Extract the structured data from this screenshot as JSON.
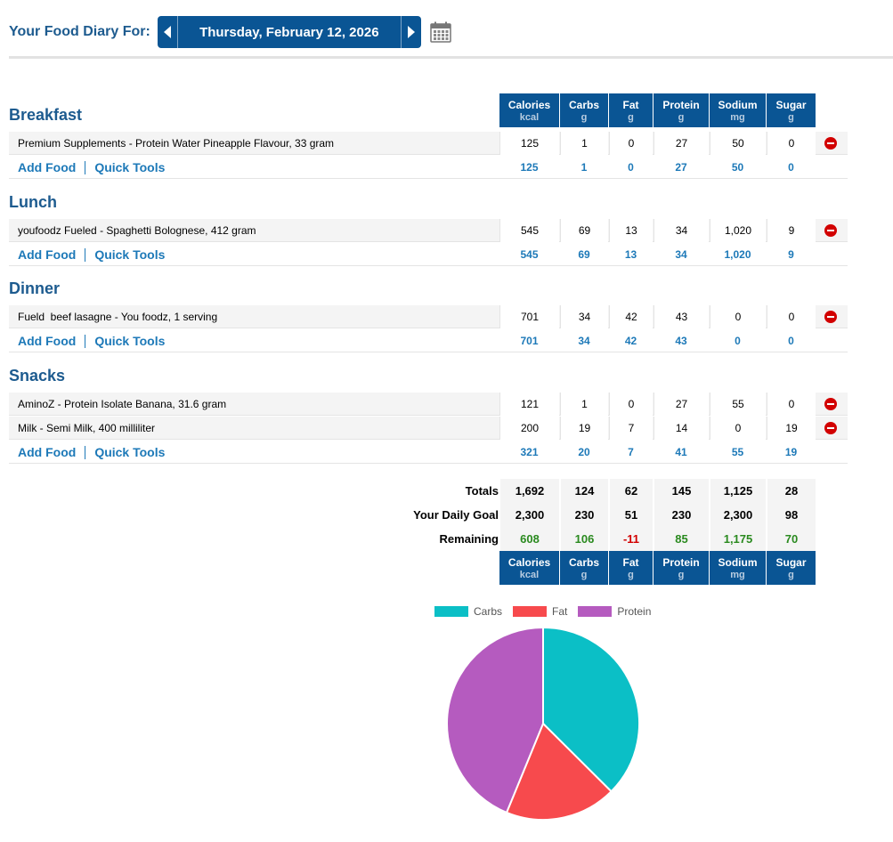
{
  "header": {
    "label": "Your Food Diary For:",
    "date": "Thursday, February 12, 2026"
  },
  "columns": [
    {
      "name": "Calories",
      "unit": "kcal"
    },
    {
      "name": "Carbs",
      "unit": "g"
    },
    {
      "name": "Fat",
      "unit": "g"
    },
    {
      "name": "Protein",
      "unit": "g"
    },
    {
      "name": "Sodium",
      "unit": "mg"
    },
    {
      "name": "Sugar",
      "unit": "g"
    }
  ],
  "links": {
    "add_food": "Add Food",
    "quick_tools": "Quick Tools"
  },
  "meals": {
    "breakfast": {
      "title": "Breakfast",
      "items": [
        {
          "name": "Premium Supplements - Protein Water Pineapple Flavour, 33 gram",
          "values": [
            "125",
            "1",
            "0",
            "27",
            "50",
            "0"
          ]
        }
      ],
      "totals": [
        "125",
        "1",
        "0",
        "27",
        "50",
        "0"
      ]
    },
    "lunch": {
      "title": "Lunch",
      "items": [
        {
          "name": "youfoodz Fueled - Spaghetti Bolognese, 412 gram",
          "values": [
            "545",
            "69",
            "13",
            "34",
            "1,020",
            "9"
          ]
        }
      ],
      "totals": [
        "545",
        "69",
        "13",
        "34",
        "1,020",
        "9"
      ]
    },
    "dinner": {
      "title": "Dinner",
      "items": [
        {
          "name": "Fueld  beef lasagne - You foodz, 1 serving",
          "values": [
            "701",
            "34",
            "42",
            "43",
            "0",
            "0"
          ]
        }
      ],
      "totals": [
        "701",
        "34",
        "42",
        "43",
        "0",
        "0"
      ]
    },
    "snacks": {
      "title": "Snacks",
      "items": [
        {
          "name": "AminoZ - Protein Isolate Banana, 31.6 gram",
          "values": [
            "121",
            "1",
            "0",
            "27",
            "55",
            "0"
          ]
        },
        {
          "name": "Milk - Semi Milk, 400 milliliter",
          "values": [
            "200",
            "19",
            "7",
            "14",
            "0",
            "19"
          ]
        }
      ],
      "totals": [
        "321",
        "20",
        "7",
        "41",
        "55",
        "19"
      ]
    }
  },
  "summary": {
    "totals": {
      "label": "Totals",
      "values": [
        "1,692",
        "124",
        "62",
        "145",
        "1,125",
        "28"
      ]
    },
    "goal": {
      "label": "Your Daily Goal",
      "values": [
        "2,300",
        "230",
        "51",
        "230",
        "2,300",
        "98"
      ]
    },
    "remaining": {
      "label": "Remaining",
      "values": [
        "608",
        "106",
        "-11",
        "85",
        "1,175",
        "70"
      ]
    }
  },
  "chart_data": {
    "type": "pie",
    "categories": [
      "Carbs",
      "Fat",
      "Protein"
    ],
    "values": [
      124,
      62,
      145
    ],
    "colors": [
      "#0bbfc6",
      "#f74a4d",
      "#b55bbf"
    ],
    "legend": "top"
  }
}
